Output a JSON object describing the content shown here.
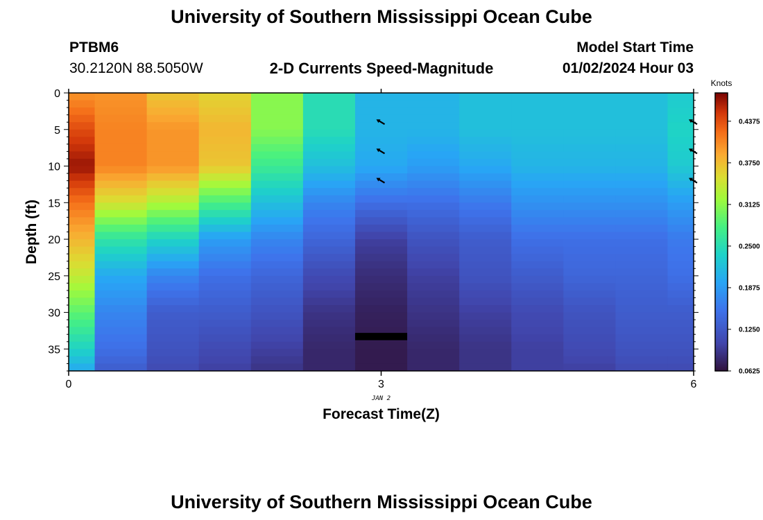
{
  "page": {
    "title": "University of Southern Mississippi Ocean Cube",
    "station_id": "PTBM6",
    "station_coords": "30.2120N  88.5050W",
    "product": "2-D Currents Speed-Magnitude",
    "model_start_label": "Model Start Time",
    "model_start_value": "01/02/2024 Hour 03",
    "footer_title": "University of Southern Mississippi Ocean Cube"
  },
  "chart_data": {
    "type": "heatmap",
    "xlabel": "Forecast Time(Z)",
    "ylabel": "Depth (ft)",
    "xlim": [
      0,
      6
    ],
    "ylim": [
      0,
      38
    ],
    "y_inverted": true,
    "x_ticks": [
      "0",
      "3",
      "6"
    ],
    "x_date_label": "JAN 2",
    "y_ticks": [
      "0",
      "5",
      "10",
      "15",
      "20",
      "25",
      "30",
      "35"
    ],
    "colorbar": {
      "label": "Knots",
      "min": 0.0625,
      "max": 0.48,
      "ticks": [
        "0.0625",
        "0.1250",
        "0.1875",
        "0.2500",
        "0.3125",
        "0.3750",
        "0.4375"
      ]
    },
    "time_columns": [
      0,
      0.5,
      1,
      1.5,
      2,
      2.5,
      3,
      3.5,
      4,
      4.5,
      5,
      5.5,
      6
    ],
    "depth_levels_ft": [
      0,
      5,
      10,
      15,
      20,
      25,
      30,
      35,
      38
    ],
    "speed_knots": [
      [
        0.4,
        0.44,
        0.47,
        0.42,
        0.38,
        0.34,
        0.29,
        0.24,
        0.2
      ],
      [
        0.4,
        0.41,
        0.41,
        0.35,
        0.26,
        0.2,
        0.17,
        0.15,
        0.13
      ],
      [
        0.37,
        0.4,
        0.4,
        0.33,
        0.24,
        0.17,
        0.13,
        0.12,
        0.11
      ],
      [
        0.36,
        0.38,
        0.37,
        0.28,
        0.19,
        0.15,
        0.13,
        0.11,
        0.1
      ],
      [
        0.31,
        0.31,
        0.27,
        0.22,
        0.17,
        0.14,
        0.12,
        0.1,
        0.09
      ],
      [
        0.25,
        0.25,
        0.22,
        0.17,
        0.14,
        0.11,
        0.09,
        0.08,
        0.08
      ],
      [
        0.21,
        0.21,
        0.2,
        0.15,
        0.1,
        0.085,
        0.075,
        0.07,
        0.07
      ],
      [
        0.21,
        0.21,
        0.19,
        0.15,
        0.12,
        0.1,
        0.09,
        0.08,
        0.08
      ],
      [
        0.22,
        0.22,
        0.2,
        0.16,
        0.13,
        0.12,
        0.1,
        0.09,
        0.09
      ],
      [
        0.22,
        0.22,
        0.21,
        0.18,
        0.15,
        0.13,
        0.11,
        0.1,
        0.1
      ],
      [
        0.22,
        0.22,
        0.21,
        0.18,
        0.15,
        0.14,
        0.12,
        0.11,
        0.1
      ],
      [
        0.22,
        0.22,
        0.21,
        0.18,
        0.15,
        0.14,
        0.13,
        0.12,
        0.11
      ],
      [
        0.23,
        0.24,
        0.23,
        0.19,
        0.16,
        0.15,
        0.13,
        0.12,
        0.11
      ]
    ],
    "missing_band": {
      "x": [
        2.75,
        3.25
      ],
      "depth_ft": [
        32.8,
        33.8
      ]
    },
    "vectors": [
      {
        "x": 3,
        "depth_ft": 4,
        "direction": "northwest"
      },
      {
        "x": 3,
        "depth_ft": 8,
        "direction": "northwest"
      },
      {
        "x": 3,
        "depth_ft": 12,
        "direction": "northwest"
      },
      {
        "x": 6,
        "depth_ft": 4,
        "direction": "northwest"
      },
      {
        "x": 6,
        "depth_ft": 8,
        "direction": "northwest"
      },
      {
        "x": 6,
        "depth_ft": 12,
        "direction": "northwest"
      }
    ],
    "colors": {
      "missing": "#000000",
      "axis": "#000000"
    }
  }
}
